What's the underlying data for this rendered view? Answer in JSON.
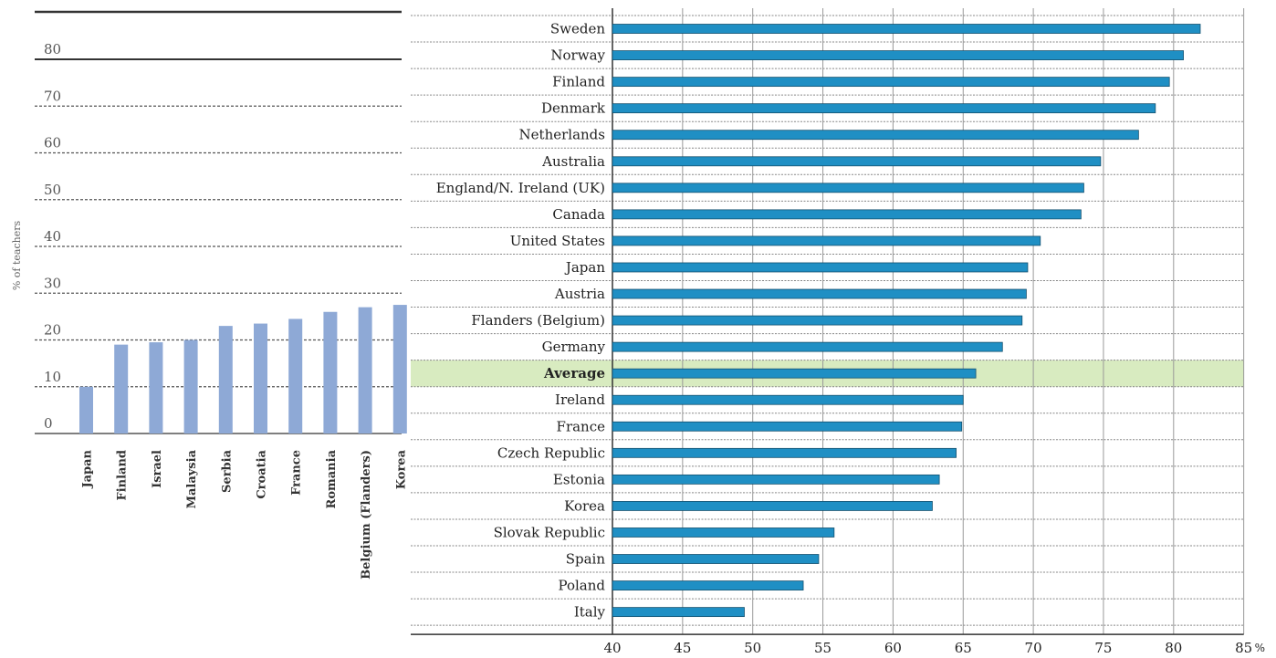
{
  "chart_data": [
    {
      "type": "bar",
      "orientation": "vertical",
      "ylabel": "% of teachers",
      "ylim": [
        0,
        80
      ],
      "yticks": [
        "0",
        "10",
        "20",
        "30",
        "40",
        "50",
        "60",
        "70",
        "80"
      ],
      "grid": "horizontal dashed",
      "bar_color": "#8EA9D6",
      "categories": [
        "Japan",
        "Finland",
        "Israel",
        "Malaysia",
        "Serbia",
        "Croatia",
        "France",
        "Romania",
        "Belgium (Flanders)",
        "Korea"
      ],
      "values": [
        10,
        19,
        19.5,
        20,
        23,
        23.5,
        24.5,
        26,
        27,
        27.5
      ]
    },
    {
      "type": "bar",
      "orientation": "horizontal",
      "xlim": [
        40,
        85
      ],
      "xticks": [
        "40",
        "45",
        "50",
        "55",
        "60",
        "65",
        "70",
        "75",
        "80",
        "85"
      ],
      "xunit": "%",
      "grid": "vertical lines",
      "bar_color": "#1F8FC4",
      "highlight_color": "#D8EBC0",
      "highlight_category": "Average",
      "categories": [
        "Sweden",
        "Norway",
        "Finland",
        "Denmark",
        "Netherlands",
        "Australia",
        "England/N. Ireland (UK)",
        "Canada",
        "United States",
        "Japan",
        "Austria",
        "Flanders (Belgium)",
        "Germany",
        "Average",
        "Ireland",
        "France",
        "Czech Republic",
        "Estonia",
        "Korea",
        "Slovak Republic",
        "Spain",
        "Poland",
        "Italy"
      ],
      "values": [
        81.9,
        80.7,
        79.7,
        78.7,
        77.5,
        74.8,
        73.6,
        73.4,
        70.5,
        69.6,
        69.5,
        69.2,
        67.8,
        65.9,
        65.0,
        64.9,
        64.5,
        63.3,
        62.8,
        55.8,
        54.7,
        53.6,
        49.4
      ]
    }
  ]
}
